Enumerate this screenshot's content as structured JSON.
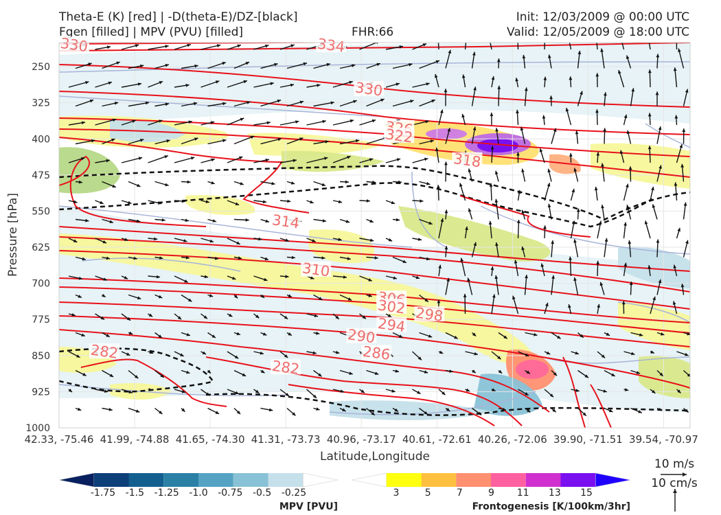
{
  "header": {
    "title_left_1": "Theta-E (K) [red] | -D(theta-E)/DZ-[black]",
    "title_left_2": "Fgen [filled] | MPV (PVU) [filled]",
    "fhr": "FHR:66",
    "init": "Init: 12/03/2009 @ 00:00 UTC",
    "valid": "Valid: 12/05/2009 @ 18:00 UTC"
  },
  "chart_data": {
    "type": "cross-section",
    "xlabel": "Latitude,Longitude",
    "ylabel": "Pressure [hPa]",
    "x_ticks": [
      "42.33, -75.46",
      "41.99, -74.88",
      "41.65, -74.30",
      "41.31, -73.73",
      "40.96, -73.17",
      "40.61, -72.61",
      "40.26, -72.06",
      "39.90, -71.51",
      "39.54, -70.97"
    ],
    "y_ticks": [
      250,
      325,
      400,
      475,
      550,
      625,
      700,
      775,
      850,
      925,
      1000
    ],
    "ylim": [
      1000,
      200
    ],
    "theta_e_contour_labels": [
      {
        "value": "330",
        "x_index": 0.2,
        "p": 205
      },
      {
        "value": "334",
        "x_index": 3.6,
        "p": 206
      },
      {
        "value": "330",
        "x_index": 4.1,
        "p": 297
      },
      {
        "value": "326",
        "x_index": 4.5,
        "p": 378
      },
      {
        "value": "322",
        "x_index": 4.5,
        "p": 394
      },
      {
        "value": "318",
        "x_index": 5.4,
        "p": 445
      },
      {
        "value": "314",
        "x_index": 3.0,
        "p": 572
      },
      {
        "value": "310",
        "x_index": 3.4,
        "p": 672
      },
      {
        "value": "306",
        "x_index": 4.4,
        "p": 732
      },
      {
        "value": "302",
        "x_index": 4.4,
        "p": 749
      },
      {
        "value": "298",
        "x_index": 4.9,
        "p": 765
      },
      {
        "value": "294",
        "x_index": 4.4,
        "p": 787
      },
      {
        "value": "290",
        "x_index": 4.0,
        "p": 810
      },
      {
        "value": "286",
        "x_index": 4.2,
        "p": 845
      },
      {
        "value": "282",
        "x_index": 0.6,
        "p": 842
      },
      {
        "value": "282",
        "x_index": 3.0,
        "p": 875
      }
    ],
    "grid": true,
    "colorbars": [
      {
        "label": "MPV [PVU]",
        "ticks": [
          "-1.75",
          "-1.5",
          "-1.25",
          "-1.0",
          "-0.75",
          "-0.5",
          "-0.25"
        ],
        "colors": [
          "#08205e",
          "#0d3f7a",
          "#135f8f",
          "#2b80a6",
          "#54a3c2",
          "#89c2d6",
          "#c5e0ea",
          "#ffffff"
        ]
      },
      {
        "label": "Frontogenesis [K/100km/3hr]",
        "ticks": [
          "3",
          "5",
          "7",
          "9",
          "11",
          "13",
          "15"
        ],
        "colors": [
          "#ffffff",
          "#ffff10",
          "#ffc040",
          "#ff9070",
          "#ff60a0",
          "#d030d0",
          "#7a10f0",
          "#2000ff"
        ]
      }
    ],
    "vector_key": {
      "top": "10 m/s",
      "bottom": "10 cm/s"
    }
  }
}
